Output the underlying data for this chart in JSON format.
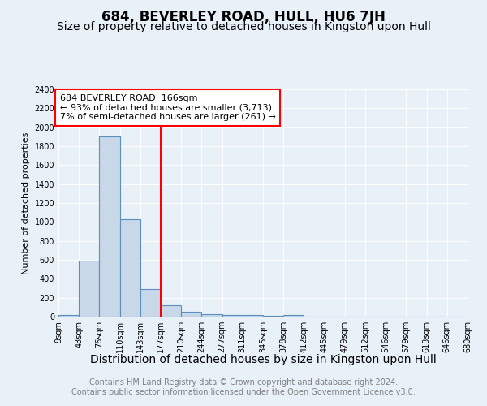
{
  "title": "684, BEVERLEY ROAD, HULL, HU6 7JH",
  "subtitle": "Size of property relative to detached houses in Kingston upon Hull",
  "xlabel": "Distribution of detached houses by size in Kingston upon Hull",
  "ylabel": "Number of detached properties",
  "footer_line1": "Contains HM Land Registry data © Crown copyright and database right 2024.",
  "footer_line2": "Contains public sector information licensed under the Open Government Licence v3.0.",
  "annotation_line1": "684 BEVERLEY ROAD: 166sqm",
  "annotation_line2": "← 93% of detached houses are smaller (3,713)",
  "annotation_line3": "7% of semi-detached houses are larger (261) →",
  "bar_values": [
    20,
    590,
    1900,
    1030,
    295,
    120,
    50,
    30,
    15,
    15,
    5,
    20,
    0,
    0,
    0,
    0,
    0,
    0,
    0,
    0
  ],
  "bar_labels": [
    "9sqm",
    "43sqm",
    "76sqm",
    "110sqm",
    "143sqm",
    "177sqm",
    "210sqm",
    "244sqm",
    "277sqm",
    "311sqm",
    "345sqm",
    "378sqm",
    "412sqm",
    "445sqm",
    "479sqm",
    "512sqm",
    "546sqm",
    "579sqm",
    "613sqm",
    "646sqm",
    "680sqm"
  ],
  "bar_color": "#c8d8e8",
  "bar_edge_color": "#5a8fc0",
  "red_line_x": 5.0,
  "ylim": [
    0,
    2400
  ],
  "yticks": [
    0,
    200,
    400,
    600,
    800,
    1000,
    1200,
    1400,
    1600,
    1800,
    2000,
    2200,
    2400
  ],
  "background_color": "#e8f0f8",
  "plot_bg_color": "#e8f0f8",
  "title_fontsize": 12,
  "subtitle_fontsize": 10,
  "tick_fontsize": 7,
  "ylabel_fontsize": 8,
  "xlabel_fontsize": 10,
  "footer_fontsize": 7,
  "annotation_fontsize": 8
}
